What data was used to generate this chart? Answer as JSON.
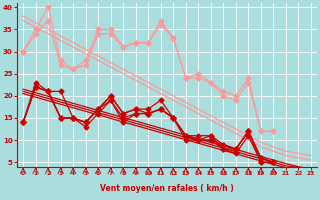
{
  "bg_color": "#aadddd",
  "grid_color": "#ffffff",
  "x_label": "Vent moyen/en rafales ( km/h )",
  "x_ticks": [
    0,
    1,
    2,
    3,
    4,
    5,
    6,
    7,
    8,
    9,
    10,
    11,
    12,
    13,
    14,
    15,
    16,
    17,
    18,
    19,
    20,
    21,
    22,
    23
  ],
  "ylim": [
    4,
    41
  ],
  "xlim": [
    -0.5,
    23.5
  ],
  "yticks": [
    5,
    10,
    15,
    20,
    25,
    30,
    35,
    40
  ],
  "dark_red": "#cc0000",
  "light_red": "#ff9999",
  "dark_lines": [
    [
      14,
      22,
      21,
      15,
      15,
      13,
      16,
      19,
      14,
      16,
      16,
      17,
      15,
      11,
      10,
      11,
      8,
      8,
      12,
      6,
      5,
      null,
      null,
      null
    ],
    [
      14,
      22,
      21,
      15,
      15,
      14,
      17,
      19,
      15,
      16,
      16,
      17,
      15,
      10,
      10,
      10,
      8,
      7,
      11,
      5,
      5,
      null,
      null,
      null
    ],
    [
      14,
      22,
      21,
      15,
      15,
      14,
      17,
      20,
      16,
      17,
      17,
      19,
      15,
      11,
      11,
      11,
      9,
      8,
      12,
      6,
      5,
      null,
      null,
      null
    ],
    [
      14,
      23,
      21,
      21,
      15,
      14,
      17,
      20,
      16,
      17,
      16,
      17,
      15,
      11,
      10,
      10,
      9,
      8,
      12,
      5,
      5,
      null,
      null,
      null
    ]
  ],
  "dark_trend": [
    [
      21.5,
      20.7,
      19.9,
      19.1,
      18.3,
      17.5,
      16.7,
      15.9,
      15.1,
      14.3,
      13.5,
      12.7,
      11.9,
      11.1,
      10.3,
      9.5,
      8.7,
      7.9,
      7.1,
      6.3,
      5.5,
      4.7,
      4.0,
      3.5
    ],
    [
      21.0,
      20.2,
      19.4,
      18.6,
      17.8,
      17.0,
      16.2,
      15.4,
      14.6,
      13.8,
      13.0,
      12.2,
      11.4,
      10.6,
      9.8,
      9.0,
      8.2,
      7.4,
      6.6,
      5.8,
      5.0,
      4.2,
      3.8,
      3.3
    ],
    [
      20.5,
      19.7,
      18.9,
      18.1,
      17.3,
      16.5,
      15.7,
      14.9,
      14.1,
      13.3,
      12.5,
      11.7,
      10.9,
      10.1,
      9.3,
      8.5,
      7.7,
      6.9,
      6.1,
      5.3,
      4.5,
      3.8,
      3.5,
      3.0
    ]
  ],
  "light_lines": [
    [
      30,
      35,
      40,
      28,
      26,
      28,
      35,
      35,
      31,
      32,
      32,
      37,
      33,
      24,
      25,
      23,
      21,
      20,
      24,
      12,
      12,
      null,
      null,
      null
    ],
    [
      30,
      34,
      37,
      27,
      26,
      27,
      34,
      34,
      31,
      32,
      32,
      36,
      33,
      24,
      24,
      23,
      20,
      19,
      23,
      12,
      12,
      null,
      null,
      null
    ]
  ],
  "light_trend": [
    [
      38.0,
      36.5,
      35.0,
      33.5,
      32.0,
      30.5,
      29.0,
      27.5,
      26.0,
      24.5,
      23.0,
      21.5,
      20.0,
      18.5,
      17.0,
      15.5,
      14.0,
      12.5,
      11.0,
      9.5,
      8.5,
      7.5,
      7.0,
      6.5
    ],
    [
      37.0,
      35.5,
      34.0,
      32.5,
      31.0,
      29.5,
      28.0,
      26.5,
      25.0,
      23.5,
      22.0,
      20.5,
      19.0,
      17.5,
      16.0,
      14.5,
      13.0,
      11.5,
      10.0,
      8.5,
      7.5,
      6.5,
      6.0,
      5.5
    ]
  ],
  "marker_size": 2.5,
  "linewidth": 0.9
}
